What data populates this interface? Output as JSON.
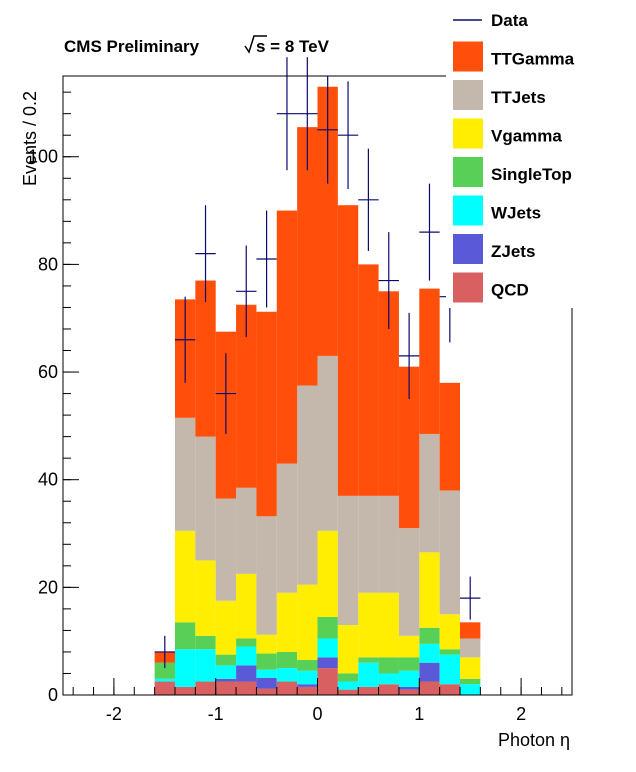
{
  "chart_data": {
    "type": "bar",
    "stacked": true,
    "header": "CMS Preliminary",
    "energy_label": "s = 8 TeV",
    "xlabel": "Photon η",
    "ylabel": "Events / 0.2",
    "xlim": [
      -2.5,
      2.5
    ],
    "ylim": [
      0,
      115
    ],
    "xticks": [
      -2,
      -1,
      0,
      1,
      2
    ],
    "yticks": [
      0,
      20,
      40,
      60,
      80,
      100
    ],
    "bin_edges": [
      -1.6,
      -1.4,
      -1.2,
      -1.0,
      -0.8,
      -0.6,
      -0.4,
      -0.2,
      0.0,
      0.2,
      0.4,
      0.6,
      0.8,
      1.0,
      1.2,
      1.4,
      1.6
    ],
    "series": [
      {
        "name": "QCD",
        "color": "#d86060",
        "values": [
          2.5,
          1.5,
          2.5,
          2.5,
          2.5,
          1.2,
          2.5,
          1.5,
          5.0,
          1.0,
          1.5,
          2.0,
          1.0,
          2.5,
          2.0,
          0
        ]
      },
      {
        "name": "ZJets",
        "color": "#5a5ad8",
        "values": [
          0,
          0,
          0,
          0.5,
          3.0,
          2.0,
          0,
          0.5,
          2.0,
          0,
          0,
          0,
          0.5,
          3.5,
          0,
          0
        ]
      },
      {
        "name": "WJets",
        "color": "#00ffff",
        "values": [
          0.5,
          7.0,
          6.0,
          2.5,
          3.5,
          1.5,
          2.5,
          2.5,
          3.5,
          1.5,
          4.5,
          2.0,
          3.0,
          3.5,
          5.5,
          2.0
        ]
      },
      {
        "name": "SingleTop",
        "color": "#58d058",
        "values": [
          3.0,
          5.0,
          2.5,
          2.0,
          1.5,
          3.0,
          3.0,
          2.0,
          4.0,
          1.5,
          1.0,
          3.0,
          2.5,
          3.0,
          1.0,
          1.0
        ]
      },
      {
        "name": "Vgamma",
        "color": "#ffee00",
        "values": [
          0,
          17.0,
          14.0,
          10.0,
          12.0,
          3.5,
          11.0,
          14.0,
          16.0,
          9.0,
          12.0,
          12.0,
          4.0,
          14.0,
          6.5,
          4.0
        ]
      },
      {
        "name": "TTJets",
        "color": "#c4b8ad",
        "values": [
          0,
          21.0,
          23.0,
          19.0,
          16.0,
          22.0,
          24.0,
          37.0,
          32.5,
          24.0,
          18.0,
          18.0,
          20.0,
          22.0,
          23.0,
          3.5
        ]
      },
      {
        "name": "TTGamma",
        "color": "#ff4f0a",
        "values": [
          2.0,
          22.0,
          29.0,
          31.0,
          34.0,
          38.0,
          47.0,
          48.0,
          50.0,
          54.0,
          43.0,
          38.0,
          30.0,
          27.0,
          20.0,
          3.0
        ]
      }
    ],
    "data": {
      "name": "Data",
      "color": "#0a0a6e",
      "x": [
        -1.5,
        -1.3,
        -1.1,
        -0.9,
        -0.7,
        -0.5,
        -0.3,
        -0.1,
        0.1,
        0.3,
        0.5,
        0.7,
        0.9,
        1.1,
        1.3,
        1.5
      ],
      "y": [
        8,
        66,
        82,
        56,
        75,
        81,
        108,
        108,
        105,
        104,
        92,
        77,
        63,
        86,
        74,
        18
      ],
      "err": [
        3,
        8,
        9,
        7.5,
        8.5,
        9,
        10.5,
        10.5,
        10,
        10,
        9.5,
        9,
        8,
        9,
        8.5,
        4
      ]
    },
    "legend_order": [
      "Data",
      "TTGamma",
      "TTJets",
      "Vgamma",
      "SingleTop",
      "WJets",
      "ZJets",
      "QCD"
    ],
    "legend_position": "top-right"
  }
}
